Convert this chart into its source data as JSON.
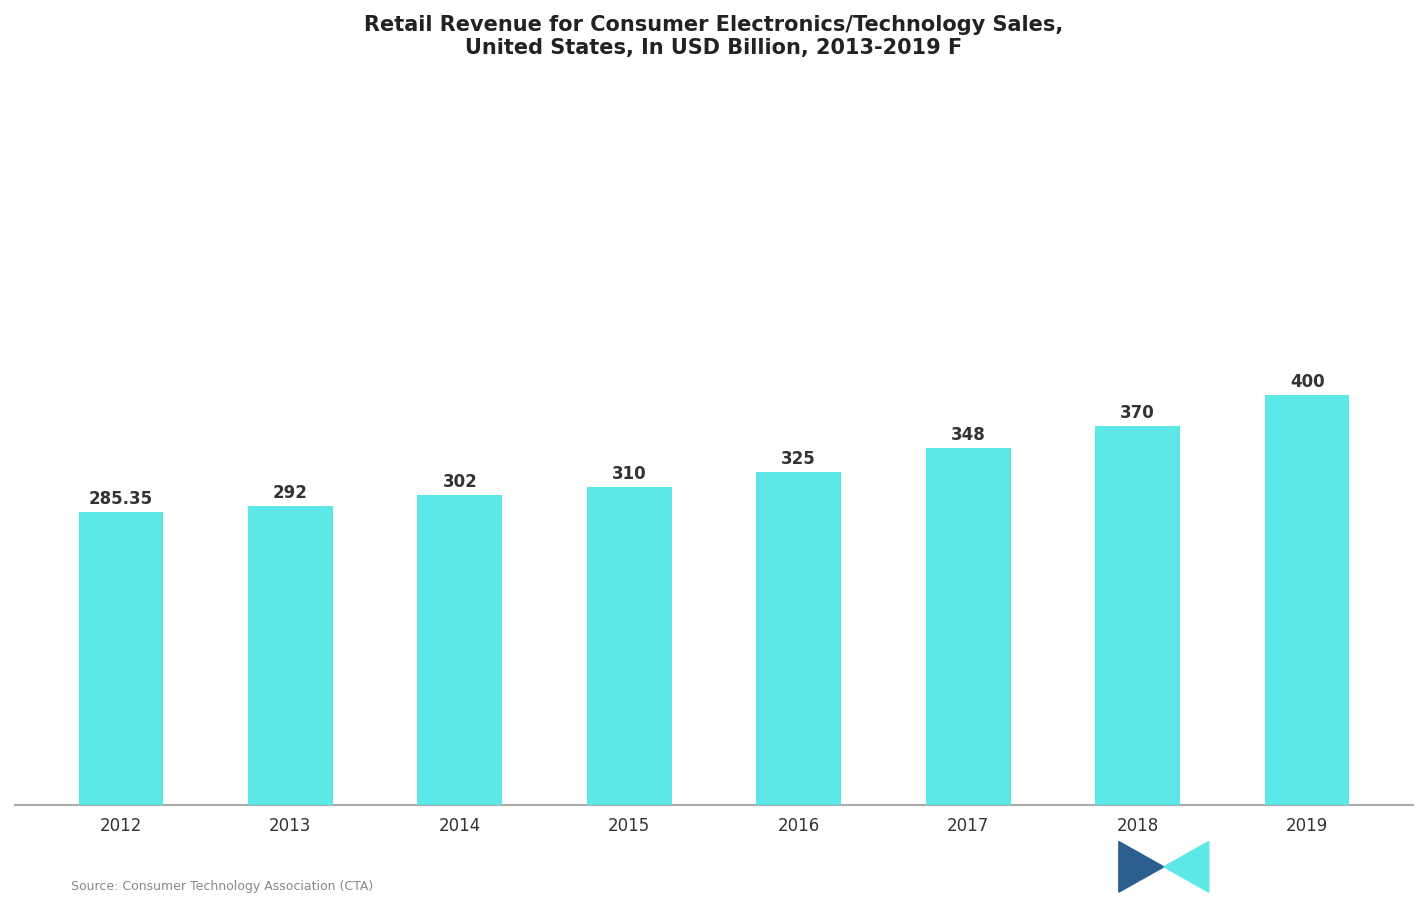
{
  "title_line1": "Retail Revenue for Consumer Electronics/Technology Sales,",
  "title_line2": "United States, In USD Billion, 2013-2019 F",
  "categories": [
    "2012",
    "2013",
    "2014",
    "2015",
    "2016",
    "2017",
    "2018",
    "2019"
  ],
  "values": [
    285.35,
    292.0,
    302.0,
    310.0,
    325.0,
    348.0,
    370.0,
    400.0
  ],
  "bar_labels": [
    "285.35",
    "292",
    "302",
    "310",
    "325",
    "348",
    "370",
    "400"
  ],
  "bar_color": "#5DE8E8",
  "background_color": "#ffffff",
  "text_color": "#333333",
  "title_color": "#222222",
  "source_text": "Source: Consumer Technology Association (CTA)",
  "ylim": [
    0,
    700
  ],
  "bar_width": 0.5
}
